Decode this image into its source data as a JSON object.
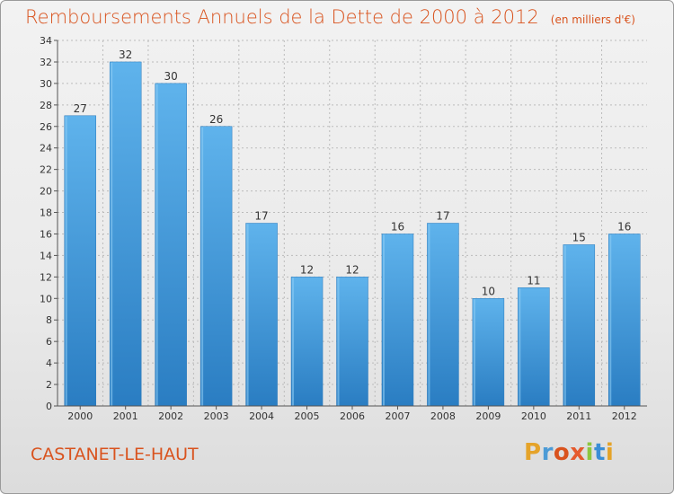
{
  "header": {
    "title": "Remboursements Annuels de la Dette de 2000 à 2012",
    "subtitle": "(en milliers d'€)"
  },
  "footer": {
    "commune": "CASTANET-LE-HAUT",
    "logo_text": "Proxiti",
    "logo_colors": [
      "#e5a329",
      "#4c9bd6",
      "#d9531e",
      "#e55a2e",
      "#8dc63f",
      "#3a8ed6",
      "#e5a329"
    ]
  },
  "colors": {
    "title": "#d9531e",
    "bar_top": "#5fb3ec",
    "bar_bottom": "#2a7dc2",
    "grid": "#bbbbbb"
  },
  "chart_data": {
    "type": "bar",
    "title": "Remboursements Annuels de la Dette de 2000 à 2012",
    "subtitle": "(en milliers d'€)",
    "categories": [
      "2000",
      "2001",
      "2002",
      "2003",
      "2004",
      "2005",
      "2006",
      "2007",
      "2008",
      "2009",
      "2010",
      "2011",
      "2012"
    ],
    "values": [
      27,
      32,
      30,
      26,
      17,
      12,
      12,
      16,
      17,
      10,
      11,
      15,
      16
    ],
    "data_labels": [
      "27",
      "32",
      "30",
      "26",
      "17",
      "12",
      "12",
      "16",
      "17",
      "10",
      "11",
      "15",
      "16"
    ],
    "y_ticks": [
      0,
      2,
      4,
      6,
      8,
      10,
      12,
      14,
      16,
      18,
      20,
      22,
      24,
      26,
      28,
      30,
      32,
      34
    ],
    "ylim": [
      0,
      34
    ],
    "xlabel": "",
    "ylabel": "",
    "grid": true
  }
}
